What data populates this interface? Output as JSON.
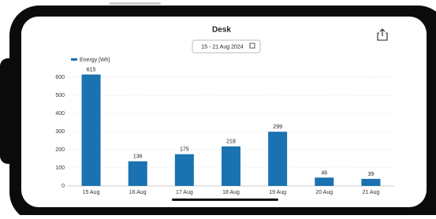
{
  "header": {
    "title": "Desk",
    "date_range": "15 - 21 Aug 2024"
  },
  "chart_data": {
    "type": "bar",
    "categories": [
      "15 Aug",
      "16 Aug",
      "17 Aug",
      "18 Aug",
      "19 Aug",
      "20 Aug",
      "21 Aug"
    ],
    "series": [
      {
        "name": "Energy [Wh]",
        "color": "#1a72b0",
        "values": [
          615,
          136,
          175,
          218,
          299,
          46,
          39
        ]
      }
    ],
    "ylim": [
      0,
      650
    ],
    "yticks": [
      0,
      100,
      200,
      300,
      400,
      500,
      600
    ],
    "grid": true,
    "legend": "top-left"
  }
}
